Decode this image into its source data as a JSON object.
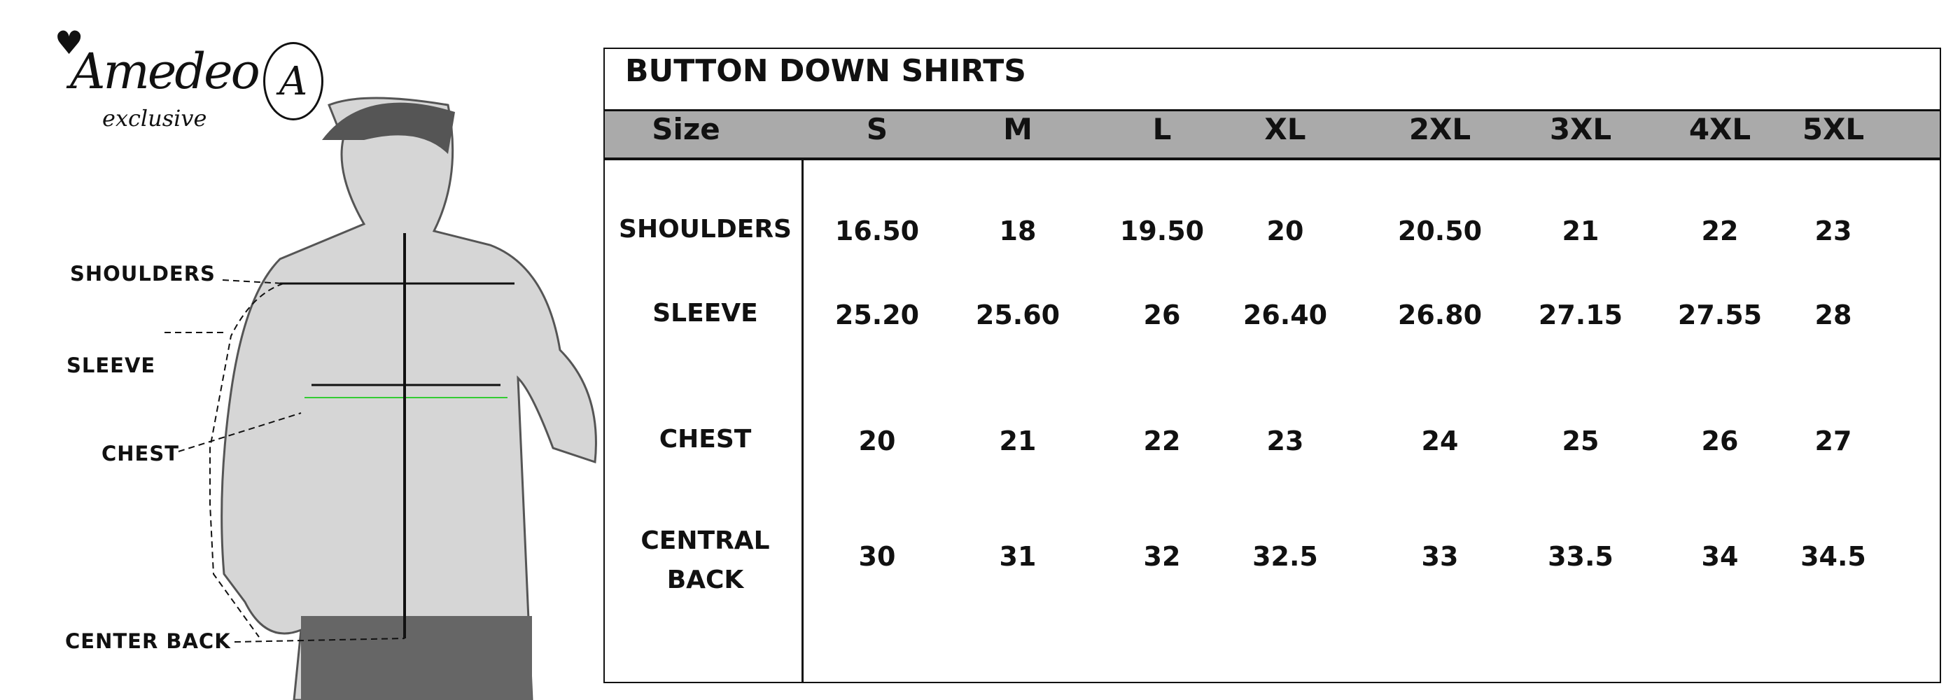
{
  "brand": {
    "name": "Amedeo",
    "tagline": "exclusive",
    "monogram": "A"
  },
  "diagram": {
    "labels": [
      "SHOULDERS",
      "SLEEVE",
      "CHEST",
      "CENTER BACK"
    ]
  },
  "table": {
    "title": "BUTTON DOWN SHIRTS",
    "header_label": "Size",
    "sizes": [
      "S",
      "M",
      "L",
      "XL",
      "2XL",
      "3XL",
      "4XL",
      "5XL"
    ],
    "rows": [
      {
        "label": "SHOULDERS",
        "values": [
          "16.50",
          "18",
          "19.50",
          "20",
          "20.50",
          "21",
          "22",
          "23"
        ]
      },
      {
        "label": "SLEEVE",
        "values": [
          "25.20",
          "25.60",
          "26",
          "26.40",
          "26.80",
          "27.15",
          "27.55",
          "28"
        ]
      },
      {
        "label": "CHEST",
        "values": [
          "20",
          "21",
          "22",
          "23",
          "24",
          "25",
          "26",
          "27"
        ]
      },
      {
        "label": "CENTRAL BACK",
        "values": [
          "30",
          "31",
          "32",
          "32.5",
          "33",
          "33.5",
          "34",
          "34.5"
        ]
      }
    ],
    "header_color": "#aaaaaa"
  }
}
